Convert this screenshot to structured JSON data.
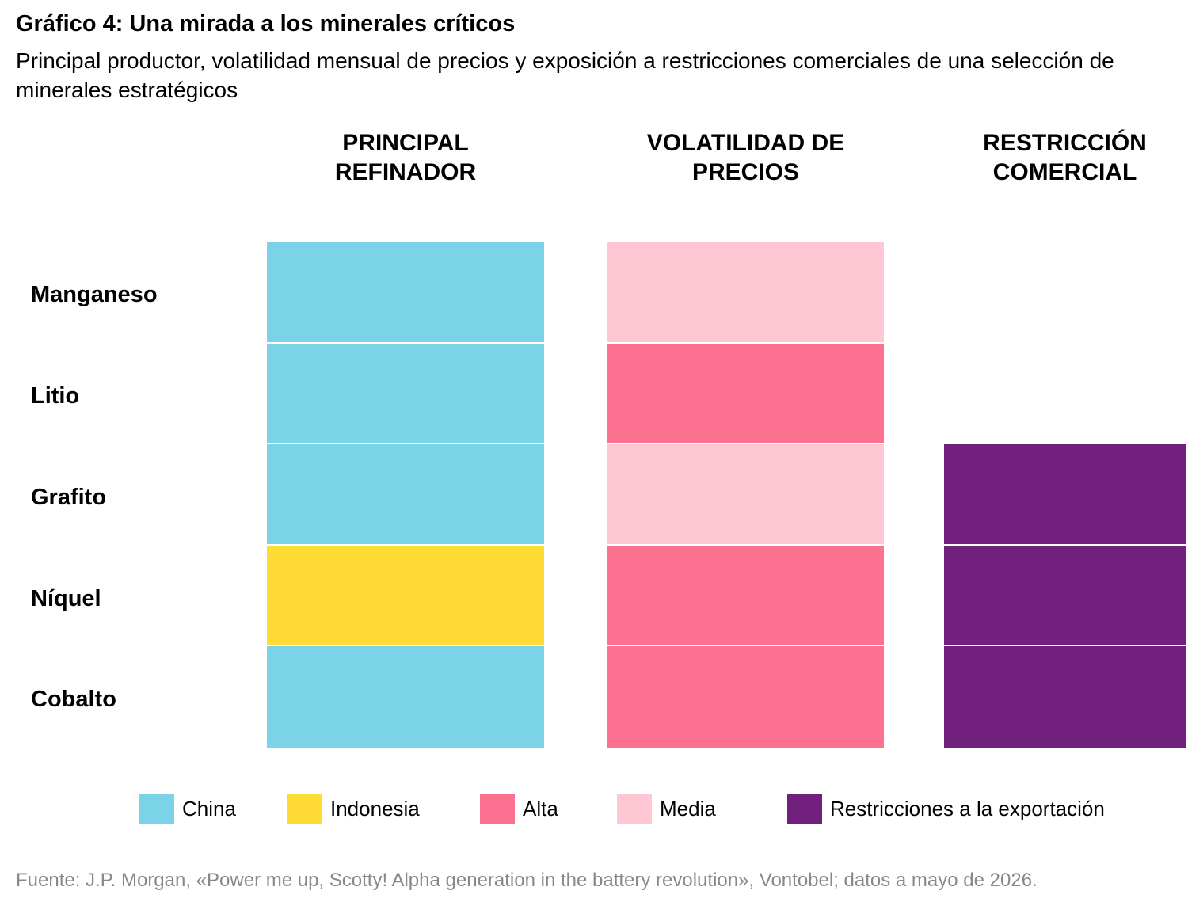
{
  "header": {
    "title": "Gráfico 4: Una mirada a los minerales críticos",
    "subtitle": "Principal productor, volatilidad mensual de precios y exposición a restricciones comerciales de una selección de minerales estratégicos"
  },
  "chart_data": {
    "type": "table",
    "columns": [
      {
        "id": "refinador",
        "label": "PRINCIPAL\nREFINADOR"
      },
      {
        "id": "volatilidad",
        "label": "VOLATILIDAD DE\nPRECIOS"
      },
      {
        "id": "restriccion",
        "label": "RESTRICCIÓN\nCOMERCIAL"
      }
    ],
    "rows": [
      {
        "label": "Manganeso",
        "refinador": "China",
        "volatilidad": "Media",
        "restriccion": null
      },
      {
        "label": "Litio",
        "refinador": "China",
        "volatilidad": "Alta",
        "restriccion": null
      },
      {
        "label": "Grafito",
        "refinador": "China",
        "volatilidad": "Media",
        "restriccion": "Restricciones a la exportación"
      },
      {
        "label": "Níquel",
        "refinador": "Indonesia",
        "volatilidad": "Alta",
        "restriccion": "Restricciones a la exportación"
      },
      {
        "label": "Cobalto",
        "refinador": "China",
        "volatilidad": "Alta",
        "restriccion": "Restricciones a la exportación"
      }
    ],
    "legend": [
      {
        "label": "China",
        "color": "#7AD3E6"
      },
      {
        "label": "Indonesia",
        "color": "#FFDB35"
      },
      {
        "label": "Alta",
        "color": "#FC7090"
      },
      {
        "label": "Media",
        "color": "#FFC7D4"
      },
      {
        "label": "Restricciones a la exportación",
        "color": "#71217D"
      }
    ]
  },
  "footer": {
    "source": "Fuente: J.P. Morgan, «Power me up, Scotty! Alpha generation in the battery revolution», Vontobel; datos a mayo de 2026."
  }
}
